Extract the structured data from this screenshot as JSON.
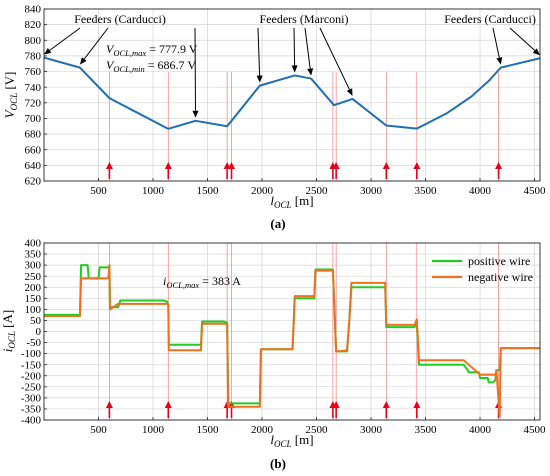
{
  "chart_data": [
    {
      "type": "line",
      "panel": "(a)",
      "xlabel": "l_OCL [m]",
      "ylabel": "V_OCL [V]",
      "xlim": [
        0,
        4550
      ],
      "ylim": [
        620,
        840
      ],
      "xticks": [
        500,
        1000,
        1500,
        2000,
        2500,
        3000,
        3500,
        4000,
        4500
      ],
      "yticks": [
        620,
        640,
        660,
        680,
        700,
        720,
        740,
        760,
        780,
        800,
        820,
        840
      ],
      "grid": true,
      "series": [
        {
          "color": "#1f6fb5",
          "x": [
            0,
            330,
            600,
            1140,
            1390,
            1680,
            1980,
            2300,
            2450,
            2660,
            2830,
            3140,
            3420,
            3700,
            3920,
            4080,
            4190,
            4550
          ],
          "y": [
            777.9,
            765,
            726,
            686.7,
            697,
            690,
            742,
            755,
            751,
            717,
            725,
            691,
            687,
            707,
            728,
            748,
            765,
            777
          ]
        }
      ],
      "annotations": [
        {
          "text": "Feeders (Carducci)",
          "arrow_targets": [
            [
              0,
              777.9
            ],
            [
              330,
              765
            ]
          ]
        },
        {
          "text": "Feeders (Marconi)",
          "arrow_targets": [
            [
              1390,
              697
            ],
            [
              1980,
              742
            ],
            [
              2300,
              755
            ],
            [
              2450,
              751
            ],
            [
              2830,
              725
            ]
          ]
        },
        {
          "text": "Feeders (Carducci)",
          "arrow_targets": [
            [
              4190,
              765
            ],
            [
              4550,
              777
            ]
          ]
        }
      ],
      "stats": {
        "vmax_label": "V_OCL,max = 777.9 V",
        "vmin_label": "V_OCL,min = 686.7 V"
      },
      "vehicle_positions": [
        600,
        1140,
        1680,
        1720,
        2650,
        2680,
        3140,
        3420,
        4170
      ]
    },
    {
      "type": "line",
      "panel": "(b)",
      "xlabel": "l_OCL [m]",
      "ylabel": "i_OCL [A]",
      "xlim": [
        0,
        4550
      ],
      "ylim": [
        -400,
        400
      ],
      "xticks": [
        500,
        1000,
        1500,
        2000,
        2500,
        3000,
        3500,
        4000,
        4500
      ],
      "yticks": [
        -400,
        -350,
        -300,
        -250,
        -200,
        -150,
        -100,
        -50,
        0,
        50,
        100,
        150,
        200,
        250,
        300,
        350,
        400
      ],
      "grid": true,
      "legend": "top-right",
      "imax_label": "i_OCL,max = 383 A",
      "series": [
        {
          "name": "positive wire",
          "color": "#22cc22",
          "x": [
            0,
            330,
            340,
            400,
            410,
            500,
            510,
            590,
            600,
            605,
            680,
            700,
            1100,
            1130,
            1140,
            1145,
            1440,
            1450,
            1650,
            1680,
            1690,
            1720,
            1980,
            1990,
            2280,
            2300,
            2480,
            2490,
            2650,
            2680,
            2700,
            2780,
            2800,
            2820,
            3080,
            3090,
            3130,
            3140,
            3400,
            3420,
            3440,
            3850,
            3900,
            3990,
            4000,
            4070,
            4080,
            4120,
            4140,
            4150,
            4180,
            4190,
            4550
          ],
          "y": [
            75,
            75,
            300,
            300,
            240,
            240,
            290,
            290,
            295,
            110,
            110,
            140,
            140,
            135,
            115,
            -60,
            -60,
            45,
            45,
            40,
            -325,
            -325,
            -325,
            -80,
            -80,
            150,
            150,
            280,
            280,
            -90,
            -90,
            -90,
            40,
            200,
            200,
            200,
            200,
            20,
            20,
            30,
            -150,
            -150,
            -185,
            -185,
            -210,
            -210,
            -230,
            -230,
            -220,
            -175,
            -175,
            -75,
            -75
          ]
        },
        {
          "name": "negative wire",
          "color": "#f07020",
          "x": [
            0,
            330,
            340,
            590,
            600,
            605,
            680,
            1130,
            1140,
            1145,
            1440,
            1450,
            1650,
            1680,
            1690,
            1720,
            1980,
            1990,
            2280,
            2300,
            2480,
            2490,
            2650,
            2680,
            2700,
            2780,
            2800,
            2820,
            3130,
            3140,
            3400,
            3420,
            3440,
            3850,
            4000,
            4140,
            4150,
            4180,
            4190,
            4550
          ],
          "y": [
            70,
            70,
            240,
            240,
            300,
            100,
            125,
            125,
            125,
            -85,
            -85,
            35,
            35,
            35,
            -340,
            -340,
            -340,
            -80,
            -80,
            160,
            160,
            275,
            275,
            -90,
            -90,
            -85,
            45,
            220,
            220,
            30,
            30,
            55,
            -130,
            -130,
            -195,
            -195,
            -175,
            -383,
            -75,
            -75
          ]
        }
      ],
      "vehicle_positions": [
        600,
        1140,
        1680,
        1720,
        2650,
        2680,
        3140,
        3420,
        4170
      ]
    }
  ]
}
